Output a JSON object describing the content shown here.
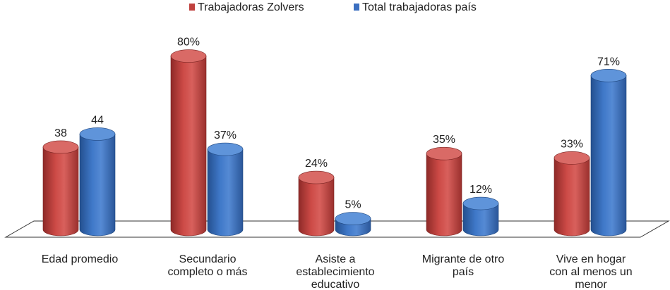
{
  "chart_data": {
    "type": "bar",
    "title": "",
    "xlabel": "",
    "ylabel": "",
    "ylim": [
      0,
      100
    ],
    "grid": false,
    "legend_position": "top-center",
    "categories": [
      [
        "Edad promedio"
      ],
      [
        "Secundario",
        "completo o más"
      ],
      [
        "Asiste a",
        "establecimiento",
        "educativo"
      ],
      [
        "Migrante de otro",
        "país"
      ],
      [
        "Vive en hogar",
        "con al menos un",
        "menor"
      ]
    ],
    "series": [
      {
        "name": "Trabajadoras Zolvers",
        "color": "#c0413e",
        "values": [
          38,
          80,
          24,
          35,
          33
        ],
        "labels": [
          "38",
          "80%",
          "24%",
          "35%",
          "33%"
        ]
      },
      {
        "name": "Total trabajadoras país",
        "color": "#3b6fc0",
        "values": [
          44,
          37,
          5,
          12,
          71
        ],
        "labels": [
          "44",
          "37%",
          "5%",
          "12%",
          "71%"
        ]
      }
    ]
  }
}
